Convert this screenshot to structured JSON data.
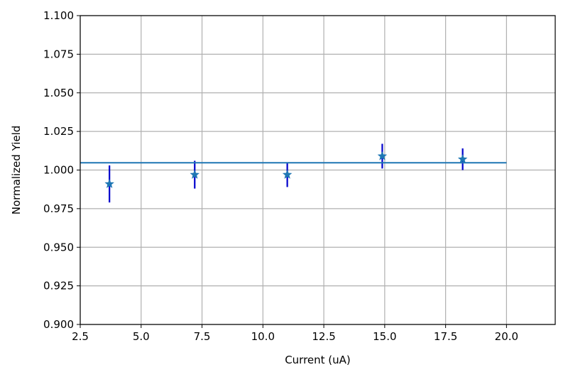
{
  "chart_data": {
    "type": "scatter",
    "title": "",
    "xlabel": "Current (uA)",
    "ylabel": "Normalized Yield",
    "xlim": [
      2.5,
      22.0
    ],
    "ylim": [
      0.9,
      1.1
    ],
    "xticks": [
      2.5,
      5.0,
      7.5,
      10.0,
      12.5,
      15.0,
      17.5,
      20.0
    ],
    "xtick_labels": [
      "2.5",
      "5.0",
      "7.5",
      "10.0",
      "12.5",
      "15.0",
      "17.5",
      "20.0"
    ],
    "yticks": [
      0.9,
      0.925,
      0.95,
      0.975,
      1.0,
      1.025,
      1.05,
      1.075,
      1.1
    ],
    "ytick_labels": [
      "0.900",
      "0.925",
      "0.950",
      "0.975",
      "1.000",
      "1.025",
      "1.050",
      "1.075",
      "1.100"
    ],
    "grid": true,
    "series": [
      {
        "kind": "points-with-errorbars",
        "marker": "star",
        "marker_color": "#1f77b4",
        "errorbar_color": "#0000cc",
        "x": [
          3.7,
          7.2,
          11.0,
          14.9,
          18.2
        ],
        "y": [
          0.991,
          0.997,
          0.997,
          1.009,
          1.007
        ],
        "yerr": [
          0.012,
          0.009,
          0.008,
          0.008,
          0.007
        ]
      },
      {
        "kind": "line",
        "color": "#1f77b4",
        "x": [
          2.5,
          20.0
        ],
        "y": [
          1.0047,
          1.0047
        ]
      }
    ]
  }
}
